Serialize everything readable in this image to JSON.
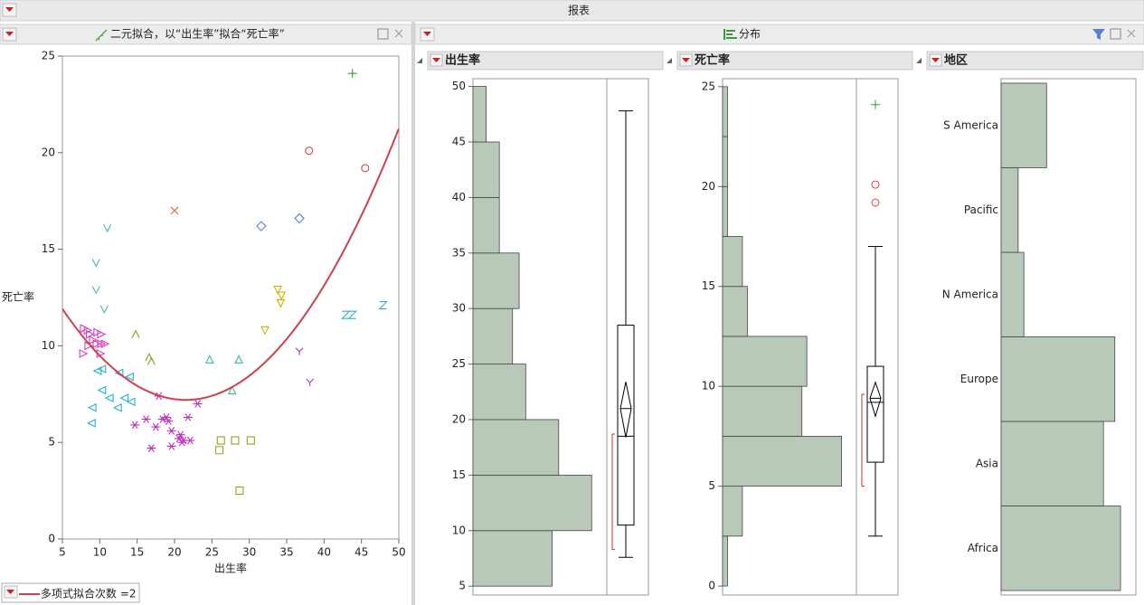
{
  "report_title": "报表",
  "bivariate_title": "二元拟合，以“出生率”拟合“死亡率”",
  "distribution_title": "分布",
  "chart_data": [
    {
      "type": "scatter",
      "x_label": "出生率",
      "y_label": "死亡率",
      "xlim": [
        5,
        50
      ],
      "ylim": [
        0,
        25
      ],
      "xticks": [
        5,
        10,
        15,
        20,
        25,
        30,
        35,
        40,
        45,
        50
      ],
      "yticks": [
        0,
        5,
        10,
        15,
        20,
        25
      ],
      "groups": [
        {
          "marker": "triangle-right",
          "color": "#d63cc0",
          "x": [
            7.9,
            8.4,
            8.7,
            9.7,
            10.2,
            8.5,
            9.1,
            9.6,
            10.2,
            10.7,
            7.8,
            10.1
          ],
          "y": [
            10.9,
            10.8,
            10.6,
            10.7,
            10.6,
            10.0,
            10.3,
            10.1,
            10.1,
            10.1,
            9.6,
            9.6
          ]
        },
        {
          "marker": "triangle-left",
          "color": "#28b0c8",
          "x": [
            9.7,
            10.3,
            12.6,
            14.0,
            10.3,
            11.3,
            12.4,
            13.3,
            14.2,
            9.0,
            8.9
          ],
          "y": [
            8.7,
            8.8,
            8.6,
            8.4,
            7.7,
            7.3,
            6.8,
            7.3,
            7.1,
            6.8,
            6.0
          ]
        },
        {
          "marker": "asterisk",
          "color": "#c030c0",
          "x": [
            17.9,
            16.2,
            17.5,
            18.4,
            18.9,
            19.2,
            19.6,
            20.6,
            21.8,
            14.7,
            16.9,
            19.6,
            20.8,
            21.2,
            22.1,
            23.1,
            21.0
          ],
          "y": [
            7.4,
            6.2,
            5.8,
            6.2,
            6.3,
            6.1,
            5.6,
            5.2,
            6.3,
            5.9,
            4.7,
            4.8,
            5.4,
            5.1,
            5.1,
            7.0,
            5.0
          ]
        },
        {
          "marker": "square",
          "color": "#8aaa20",
          "x": [
            26.2,
            28.1,
            30.2,
            26.0,
            28.7
          ],
          "y": [
            5.1,
            5.1,
            5.1,
            4.6,
            2.5
          ]
        },
        {
          "marker": "lambda",
          "color": "#8aa020",
          "x": [
            14.8,
            16.6,
            16.9
          ],
          "y": [
            10.6,
            9.4,
            9.2
          ]
        },
        {
          "marker": "triangle-up",
          "color": "#30c0a0",
          "x": [
            24.7,
            28.6,
            27.7
          ],
          "y": [
            9.3,
            9.3,
            7.7
          ]
        },
        {
          "marker": "v",
          "color": "#3cc0a0",
          "x": [
            11.0,
            9.5,
            9.5,
            10.6
          ],
          "y": [
            16.1,
            14.3,
            12.9,
            11.9
          ]
        },
        {
          "marker": "x",
          "color": "#e06030",
          "x": [
            20.0
          ],
          "y": [
            17.0
          ]
        },
        {
          "marker": "diamond",
          "color": "#6080e0",
          "x": [
            31.6,
            36.7
          ],
          "y": [
            16.2,
            16.6
          ]
        },
        {
          "marker": "circle",
          "color": "#e04050",
          "x": [
            38.0,
            45.5
          ],
          "y": [
            20.1,
            19.2
          ]
        },
        {
          "marker": "plus",
          "color": "#30a030",
          "x": [
            43.8
          ],
          "y": [
            24.1
          ]
        },
        {
          "marker": "triangle-down",
          "color": "#c8b400",
          "x": [
            33.8,
            34.3,
            34.2,
            32.1
          ],
          "y": [
            12.9,
            12.6,
            12.2,
            10.8
          ]
        },
        {
          "marker": "z",
          "color": "#30b0d0",
          "x": [
            42.9,
            43.8,
            47.9
          ],
          "y": [
            11.6,
            11.6,
            12.1
          ]
        },
        {
          "marker": "y",
          "color": "#a040d0",
          "x": [
            36.7,
            38.1
          ],
          "y": [
            9.7,
            8.1
          ]
        }
      ],
      "fit": {
        "name": "多项式拟合次数 =2",
        "color": "#d0404c",
        "coefficients": [
          15.2,
          -0.744,
          0.0173
        ]
      }
    },
    {
      "type": "histogram",
      "title": "出生率",
      "color": "#b9c9b9",
      "bins": [
        5,
        10,
        15,
        20,
        25,
        30,
        35,
        40,
        45,
        50
      ],
      "counts": [
        12,
        18,
        13,
        8,
        6,
        7,
        4,
        4,
        2
      ],
      "ylim": [
        4.2,
        50.7
      ],
      "yticks": [
        5,
        10,
        15,
        20,
        25,
        30,
        35,
        40,
        45,
        50
      ],
      "count_lim": [
        0,
        20.3
      ],
      "box": {
        "whisker_low": 7.6,
        "q1": 10.5,
        "median": 18.5,
        "q3": 28.5,
        "whisker_high": 47.8,
        "mean": 21.0,
        "mean_ci": [
          18.4,
          23.4
        ],
        "shortest_half": [
          8.3,
          18.7
        ],
        "outliers": [],
        "far_outliers": []
      }
    },
    {
      "type": "histogram",
      "title": "死亡率",
      "color": "#b9c9b9",
      "bins": [
        0,
        2.5,
        5,
        7.5,
        10,
        12.5,
        15,
        17.5,
        20,
        22.5,
        25
      ],
      "counts": [
        1,
        4,
        24,
        16,
        17,
        5,
        4,
        1,
        1,
        1
      ],
      "ylim": [
        -0.45,
        25.4
      ],
      "yticks": [
        0,
        5,
        10,
        15,
        20,
        25
      ],
      "count_lim": [
        0,
        27
      ],
      "box": {
        "whisker_low": 2.5,
        "q1": 6.2,
        "median": 9.2,
        "q3": 11.0,
        "whisker_high": 17.0,
        "mean": 9.4,
        "mean_ci": [
          8.5,
          10.2
        ],
        "shortest_half": [
          5.0,
          9.6
        ],
        "outliers": [
          20.1,
          19.2
        ],
        "far_outliers": [
          24.1
        ]
      }
    },
    {
      "type": "bar",
      "title": "地区",
      "color": "#b9c9b9",
      "categories": [
        "Africa",
        "Asia",
        "Europe",
        "N America",
        "Pacific",
        "S America"
      ],
      "values": [
        21,
        18,
        20,
        4,
        3,
        8
      ],
      "xlim": [
        0,
        23.7
      ]
    }
  ]
}
